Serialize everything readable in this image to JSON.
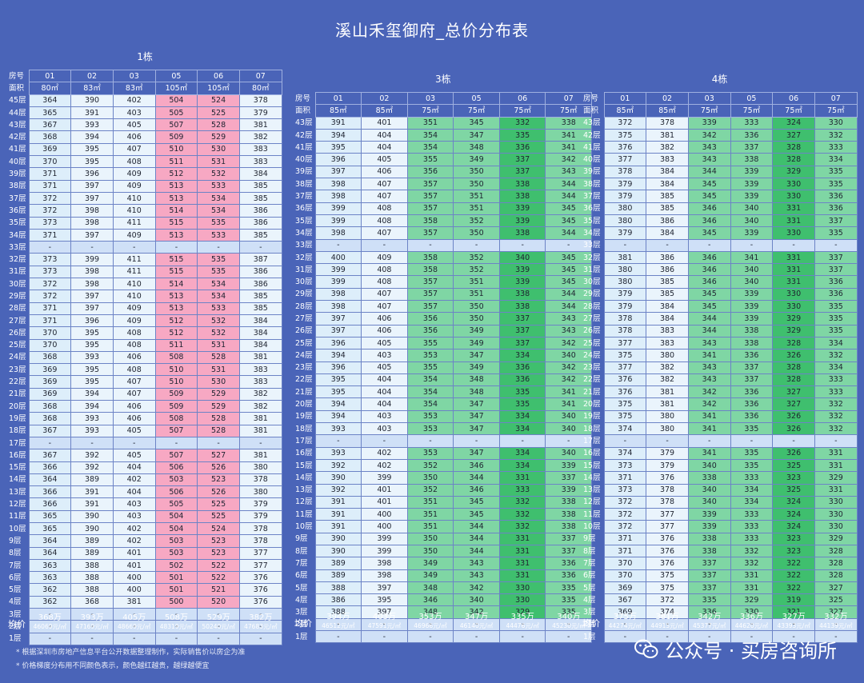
{
  "title": "溪山禾玺御府_总价分布表",
  "labels": {
    "room": "房号",
    "area": "面积",
    "avg": "均价"
  },
  "floor_suffix": "层",
  "dash": "-",
  "notes": [
    "* 根据深圳市房地产信息平台公开数据整理制作，实际销售价以房企为准",
    "* 价格梯度分布用不同颜色表示，颜色越红越贵，越绿越便宜"
  ],
  "watermark": {
    "brand": "公众号 · 买房咨询所"
  },
  "colors": {
    "background": "#4a64b8",
    "expensive": "#f7a8c3",
    "cheap": "#3fbf6e",
    "light": "#ddeefa"
  },
  "buildings": [
    {
      "name": "1栋",
      "top_floor": 45,
      "units": [
        "01",
        "02",
        "03",
        "05",
        "06",
        "07"
      ],
      "areas": [
        "80㎡",
        "83㎡",
        "83㎡",
        "105㎡",
        "105㎡",
        "80㎡"
      ],
      "colclass": [
        "a",
        "b",
        "b",
        "p",
        "p",
        "b"
      ],
      "prices": {
        "45": [
          364,
          390,
          402,
          504,
          524,
          378
        ],
        "44": [
          365,
          391,
          403,
          505,
          525,
          379
        ],
        "43": [
          367,
          393,
          405,
          507,
          528,
          381
        ],
        "42": [
          368,
          394,
          406,
          509,
          529,
          382
        ],
        "41": [
          369,
          395,
          407,
          510,
          530,
          383
        ],
        "40": [
          370,
          395,
          408,
          511,
          531,
          383
        ],
        "39": [
          371,
          396,
          409,
          512,
          532,
          384
        ],
        "38": [
          371,
          397,
          409,
          513,
          533,
          385
        ],
        "37": [
          372,
          397,
          410,
          513,
          534,
          385
        ],
        "36": [
          372,
          398,
          410,
          514,
          534,
          386
        ],
        "35": [
          373,
          398,
          411,
          515,
          535,
          386
        ],
        "34": [
          371,
          397,
          409,
          513,
          533,
          385
        ],
        "32": [
          373,
          399,
          411,
          515,
          535,
          387
        ],
        "31": [
          373,
          398,
          411,
          515,
          535,
          386
        ],
        "30": [
          372,
          398,
          410,
          514,
          534,
          386
        ],
        "29": [
          372,
          397,
          410,
          513,
          534,
          385
        ],
        "28": [
          371,
          397,
          409,
          513,
          533,
          385
        ],
        "27": [
          371,
          396,
          409,
          512,
          532,
          384
        ],
        "26": [
          370,
          395,
          408,
          512,
          532,
          384
        ],
        "25": [
          370,
          395,
          408,
          511,
          531,
          384
        ],
        "24": [
          368,
          393,
          406,
          508,
          528,
          381
        ],
        "23": [
          369,
          395,
          408,
          510,
          531,
          383
        ],
        "22": [
          369,
          395,
          407,
          510,
          530,
          383
        ],
        "21": [
          369,
          394,
          407,
          509,
          529,
          382
        ],
        "20": [
          368,
          394,
          406,
          509,
          529,
          382
        ],
        "19": [
          368,
          393,
          406,
          508,
          528,
          381
        ],
        "18": [
          367,
          393,
          405,
          507,
          528,
          381
        ],
        "16": [
          367,
          392,
          405,
          507,
          527,
          381
        ],
        "15": [
          366,
          392,
          404,
          506,
          526,
          380
        ],
        "14": [
          364,
          389,
          402,
          503,
          523,
          378
        ],
        "13": [
          366,
          391,
          404,
          506,
          526,
          380
        ],
        "12": [
          366,
          391,
          403,
          505,
          525,
          379
        ],
        "11": [
          365,
          390,
          403,
          504,
          525,
          379
        ],
        "10": [
          365,
          390,
          402,
          504,
          524,
          378
        ],
        "9": [
          364,
          389,
          402,
          503,
          523,
          378
        ],
        "8": [
          364,
          389,
          401,
          503,
          523,
          377
        ],
        "7": [
          363,
          388,
          401,
          502,
          522,
          377
        ],
        "6": [
          363,
          388,
          400,
          501,
          522,
          376
        ],
        "5": [
          362,
          388,
          400,
          501,
          521,
          376
        ],
        "4": [
          362,
          368,
          381,
          500,
          520,
          376
        ]
      },
      "avg": [
        "368万",
        "393万",
        "405万",
        "508万",
        "529万",
        "382万"
      ],
      "avg_unit": [
        "46069元/㎡",
        "47169元/㎡",
        "48669元/㎡",
        "48319元/㎡",
        "50240元/㎡",
        "47683元/㎡"
      ]
    },
    {
      "name": "3栋",
      "top_floor": 43,
      "units": [
        "01",
        "02",
        "03",
        "05",
        "06",
        "07"
      ],
      "areas": [
        "85㎡",
        "85㎡",
        "75㎡",
        "75㎡",
        "75㎡",
        "75㎡"
      ],
      "colclass": [
        "a",
        "b",
        "gl",
        "gl",
        "gd",
        "gl"
      ],
      "prices": {
        "43": [
          391,
          401,
          351,
          345,
          332,
          338
        ],
        "42": [
          394,
          404,
          354,
          347,
          335,
          341
        ],
        "41": [
          395,
          404,
          354,
          348,
          336,
          341
        ],
        "40": [
          396,
          405,
          355,
          349,
          337,
          342
        ],
        "39": [
          397,
          406,
          356,
          350,
          337,
          343
        ],
        "38": [
          398,
          407,
          357,
          350,
          338,
          344
        ],
        "37": [
          398,
          407,
          357,
          351,
          338,
          344
        ],
        "36": [
          399,
          408,
          357,
          351,
          339,
          345
        ],
        "35": [
          399,
          408,
          358,
          352,
          339,
          345
        ],
        "34": [
          398,
          407,
          357,
          350,
          338,
          344
        ],
        "32": [
          400,
          409,
          358,
          352,
          340,
          345
        ],
        "31": [
          399,
          408,
          358,
          352,
          339,
          345
        ],
        "30": [
          399,
          408,
          357,
          351,
          339,
          345
        ],
        "29": [
          398,
          407,
          357,
          351,
          338,
          344
        ],
        "28": [
          398,
          407,
          357,
          350,
          338,
          344
        ],
        "27": [
          397,
          406,
          356,
          350,
          337,
          343
        ],
        "26": [
          397,
          406,
          356,
          349,
          337,
          343
        ],
        "25": [
          396,
          405,
          355,
          349,
          337,
          342
        ],
        "24": [
          394,
          403,
          353,
          347,
          334,
          340
        ],
        "23": [
          396,
          405,
          355,
          349,
          336,
          342
        ],
        "22": [
          395,
          404,
          354,
          348,
          336,
          342
        ],
        "21": [
          395,
          404,
          354,
          348,
          335,
          341
        ],
        "20": [
          394,
          404,
          354,
          347,
          335,
          341
        ],
        "19": [
          394,
          403,
          353,
          347,
          334,
          340
        ],
        "18": [
          393,
          403,
          353,
          347,
          334,
          340
        ],
        "16": [
          393,
          402,
          353,
          347,
          334,
          340
        ],
        "15": [
          392,
          402,
          352,
          346,
          334,
          339
        ],
        "14": [
          390,
          399,
          350,
          344,
          331,
          337
        ],
        "13": [
          392,
          401,
          352,
          346,
          333,
          339
        ],
        "12": [
          391,
          401,
          351,
          345,
          332,
          338
        ],
        "11": [
          391,
          400,
          351,
          345,
          332,
          338
        ],
        "10": [
          391,
          400,
          351,
          344,
          332,
          338
        ],
        "9": [
          390,
          399,
          350,
          344,
          331,
          337
        ],
        "8": [
          390,
          399,
          350,
          344,
          331,
          337
        ],
        "7": [
          389,
          398,
          349,
          343,
          331,
          336
        ],
        "6": [
          389,
          398,
          349,
          343,
          331,
          336
        ],
        "5": [
          388,
          397,
          348,
          342,
          330,
          335
        ],
        "4": [
          386,
          395,
          346,
          340,
          330,
          335
        ],
        "3": [
          388,
          397,
          348,
          342,
          329,
          335
        ]
      },
      "avg": [
        "394万",
        "403万",
        "353万",
        "347万",
        "335万",
        "340万"
      ],
      "avg_unit": [
        "46512元/㎡",
        "47591元/㎡",
        "46966元/㎡",
        "46140元/㎡",
        "44476元/㎡",
        "45230元/㎡"
      ]
    },
    {
      "name": "4栋",
      "top_floor": 43,
      "units": [
        "01",
        "02",
        "03",
        "05",
        "06",
        "07"
      ],
      "areas": [
        "85㎡",
        "85㎡",
        "75㎡",
        "75㎡",
        "75㎡",
        "75㎡"
      ],
      "colclass": [
        "a",
        "b",
        "gl",
        "gl",
        "gd",
        "gl"
      ],
      "prices": {
        "43": [
          372,
          378,
          339,
          333,
          324,
          330
        ],
        "42": [
          375,
          381,
          342,
          336,
          327,
          332
        ],
        "41": [
          376,
          382,
          343,
          337,
          328,
          333
        ],
        "40": [
          377,
          383,
          343,
          338,
          328,
          334
        ],
        "39": [
          378,
          384,
          344,
          339,
          329,
          335
        ],
        "38": [
          379,
          384,
          345,
          339,
          330,
          335
        ],
        "37": [
          379,
          385,
          345,
          339,
          330,
          336
        ],
        "36": [
          380,
          385,
          346,
          340,
          331,
          336
        ],
        "35": [
          380,
          386,
          346,
          340,
          331,
          337
        ],
        "34": [
          379,
          384,
          345,
          339,
          330,
          335
        ],
        "32": [
          381,
          386,
          346,
          341,
          331,
          337
        ],
        "31": [
          380,
          386,
          346,
          340,
          331,
          337
        ],
        "30": [
          380,
          385,
          346,
          340,
          331,
          336
        ],
        "29": [
          379,
          385,
          345,
          339,
          330,
          336
        ],
        "28": [
          379,
          384,
          345,
          339,
          330,
          335
        ],
        "27": [
          378,
          384,
          344,
          339,
          329,
          335
        ],
        "26": [
          378,
          383,
          344,
          338,
          329,
          335
        ],
        "25": [
          377,
          383,
          343,
          338,
          328,
          334
        ],
        "24": [
          375,
          380,
          341,
          336,
          326,
          332
        ],
        "23": [
          377,
          382,
          343,
          337,
          328,
          334
        ],
        "22": [
          376,
          382,
          343,
          337,
          328,
          333
        ],
        "21": [
          376,
          381,
          342,
          336,
          327,
          333
        ],
        "20": [
          375,
          381,
          342,
          336,
          327,
          332
        ],
        "19": [
          375,
          380,
          341,
          336,
          326,
          332
        ],
        "18": [
          374,
          380,
          341,
          335,
          326,
          332
        ],
        "16": [
          374,
          379,
          341,
          335,
          326,
          331
        ],
        "15": [
          373,
          379,
          340,
          335,
          325,
          331
        ],
        "14": [
          371,
          376,
          338,
          333,
          323,
          329
        ],
        "13": [
          373,
          378,
          340,
          334,
          325,
          331
        ],
        "12": [
          372,
          378,
          340,
          334,
          324,
          330
        ],
        "11": [
          372,
          377,
          339,
          333,
          324,
          330
        ],
        "10": [
          372,
          377,
          339,
          333,
          324,
          330
        ],
        "9": [
          371,
          376,
          338,
          333,
          323,
          329
        ],
        "8": [
          371,
          376,
          338,
          332,
          323,
          328
        ],
        "7": [
          370,
          376,
          337,
          332,
          322,
          328
        ],
        "6": [
          370,
          375,
          337,
          331,
          322,
          328
        ],
        "5": [
          369,
          375,
          337,
          331,
          322,
          327
        ],
        "4": [
          367,
          372,
          335,
          329,
          319,
          325
        ],
        "3": [
          369,
          374,
          336,
          330,
          321,
          327
        ]
      },
      "avg": [
        "375万",
        "381万",
        "342万",
        "336万",
        "327万",
        "332万"
      ],
      "avg_unit": [
        "44274元/㎡",
        "44915元/㎡",
        "45377元/㎡",
        "44620元/㎡",
        "43393元/㎡",
        "44139元/㎡"
      ]
    }
  ]
}
